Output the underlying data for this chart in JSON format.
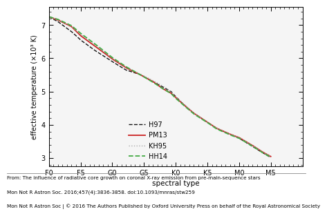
{
  "xlabel": "spectral type",
  "ylabel": "effective temperature (×10³ K)",
  "xlim": [
    0,
    56
  ],
  "ylim": [
    2.75,
    7.55
  ],
  "yticks": [
    3,
    4,
    5,
    6,
    7
  ],
  "xtick_labels": [
    "F0",
    "F5",
    "G0",
    "G5",
    "K0",
    "K5",
    "M0",
    "M5"
  ],
  "xtick_positions": [
    0,
    7,
    14,
    21,
    28,
    35,
    42,
    49
  ],
  "bg_color": "#ffffff",
  "plot_bg": "#f5f5f5",
  "caption_line1": "From: The influence of radiative core growth on coronal X-ray emission from pre-main-sequence stars",
  "caption_line2": "Mon Not R Astron Soc. 2016;457(4):3836-3858. doi:10.1093/mnras/stw259",
  "caption_line3": "Mon Not R Astron Soc | © 2016 The Authors Published by Oxford University Press on behalf of the Royal Astronomical Society",
  "legend_labels": [
    "H97",
    "PM13",
    "KH95",
    "HH14"
  ],
  "legend_colors": [
    "#111111",
    "#cc2222",
    "#aaaaaa",
    "#44aa44"
  ],
  "legend_styles": [
    "--",
    "-",
    ":",
    "--"
  ],
  "legend_linewidths": [
    1.0,
    1.3,
    1.0,
    1.3
  ],
  "H97_pts": [
    [
      0,
      7.25
    ],
    [
      2,
      7.1
    ],
    [
      5,
      6.8
    ],
    [
      7,
      6.55
    ],
    [
      10,
      6.25
    ],
    [
      14,
      5.9
    ],
    [
      17,
      5.65
    ],
    [
      20,
      5.52
    ],
    [
      23,
      5.3
    ],
    [
      25,
      5.15
    ],
    [
      27,
      5.0
    ],
    [
      28,
      4.85
    ],
    [
      30,
      4.58
    ],
    [
      32,
      4.35
    ],
    [
      35,
      4.08
    ],
    [
      37,
      3.9
    ],
    [
      40,
      3.72
    ],
    [
      42,
      3.6
    ],
    [
      45,
      3.35
    ],
    [
      47,
      3.18
    ],
    [
      49,
      3.02
    ]
  ],
  "PM13_pts": [
    [
      0,
      7.25
    ],
    [
      2,
      7.15
    ],
    [
      5,
      6.95
    ],
    [
      7,
      6.68
    ],
    [
      10,
      6.38
    ],
    [
      14,
      5.98
    ],
    [
      17,
      5.72
    ],
    [
      20,
      5.52
    ],
    [
      23,
      5.3
    ],
    [
      25,
      5.1
    ],
    [
      27,
      4.95
    ],
    [
      28,
      4.82
    ],
    [
      30,
      4.58
    ],
    [
      32,
      4.35
    ],
    [
      35,
      4.08
    ],
    [
      37,
      3.9
    ],
    [
      40,
      3.72
    ],
    [
      42,
      3.62
    ],
    [
      45,
      3.38
    ],
    [
      47,
      3.2
    ],
    [
      49,
      3.05
    ]
  ],
  "KH95_pts": [
    [
      0,
      7.25
    ],
    [
      2,
      7.15
    ],
    [
      5,
      6.95
    ],
    [
      7,
      6.72
    ],
    [
      10,
      6.42
    ],
    [
      14,
      6.0
    ],
    [
      17,
      5.74
    ],
    [
      20,
      5.54
    ],
    [
      23,
      5.33
    ],
    [
      25,
      5.18
    ],
    [
      27,
      5.0
    ],
    [
      28,
      4.85
    ],
    [
      30,
      4.6
    ],
    [
      32,
      4.35
    ],
    [
      35,
      4.08
    ],
    [
      37,
      3.9
    ],
    [
      40,
      3.72
    ],
    [
      42,
      3.62
    ],
    [
      45,
      3.38
    ],
    [
      47,
      3.2
    ],
    [
      49,
      3.05
    ]
  ],
  "HH14_pts": [
    [
      0,
      7.25
    ],
    [
      2,
      7.17
    ],
    [
      5,
      6.98
    ],
    [
      7,
      6.75
    ],
    [
      10,
      6.45
    ],
    [
      14,
      6.02
    ],
    [
      17,
      5.75
    ],
    [
      20,
      5.52
    ],
    [
      23,
      5.28
    ],
    [
      25,
      5.1
    ],
    [
      27,
      4.94
    ],
    [
      28,
      4.8
    ],
    [
      30,
      4.56
    ],
    [
      32,
      4.33
    ],
    [
      35,
      4.07
    ],
    [
      37,
      3.88
    ],
    [
      40,
      3.7
    ],
    [
      42,
      3.6
    ],
    [
      45,
      3.36
    ],
    [
      47,
      3.18
    ],
    [
      49,
      3.03
    ]
  ]
}
